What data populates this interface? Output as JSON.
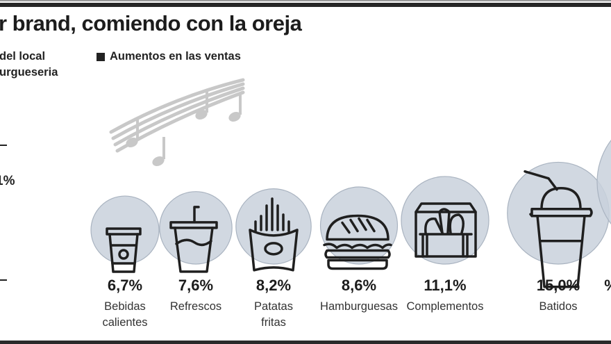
{
  "header": {
    "title": "r brand, comiendo con la oreja",
    "side_note_lines": [
      "del local",
      "urgueseria"
    ],
    "side_percentage": "1%"
  },
  "legend": {
    "label": "Aumentos en las ventas",
    "swatch_color": "#222222"
  },
  "colors": {
    "bubble_fill": "#c9d1dc",
    "bubble_stroke": "#a9b3c0",
    "icon_stroke": "#1f1f1f",
    "music_notes": "#c8c8c8"
  },
  "chart_data": {
    "type": "bubble",
    "title": "r brand, comiendo con la oreja",
    "legend": [
      "Aumentos en las ventas"
    ],
    "unit": "%",
    "categories": [
      "Bebidas calientes",
      "Refrescos",
      "Patatas fritas",
      "Hamburguesas",
      "Complementos",
      "Batidos"
    ],
    "values": [
      6.7,
      7.6,
      8.2,
      8.6,
      11.1,
      15.0
    ],
    "value_labels": [
      "6,7%",
      "7,6%",
      "8,2%",
      "8,6%",
      "11,1%",
      "15,0%"
    ],
    "category_labels": [
      "Bebidas\ncalientes",
      "Refrescos",
      "Patatas\nfritas",
      "Hamburguesas",
      "Complementos",
      "Batidos"
    ],
    "icons": [
      "coffee-cup-icon",
      "soda-cup-icon",
      "french-fries-icon",
      "burger-icon",
      "snack-box-icon",
      "milkshake-icon"
    ],
    "partial_next_item": {
      "value_label_fragment": "%"
    }
  }
}
